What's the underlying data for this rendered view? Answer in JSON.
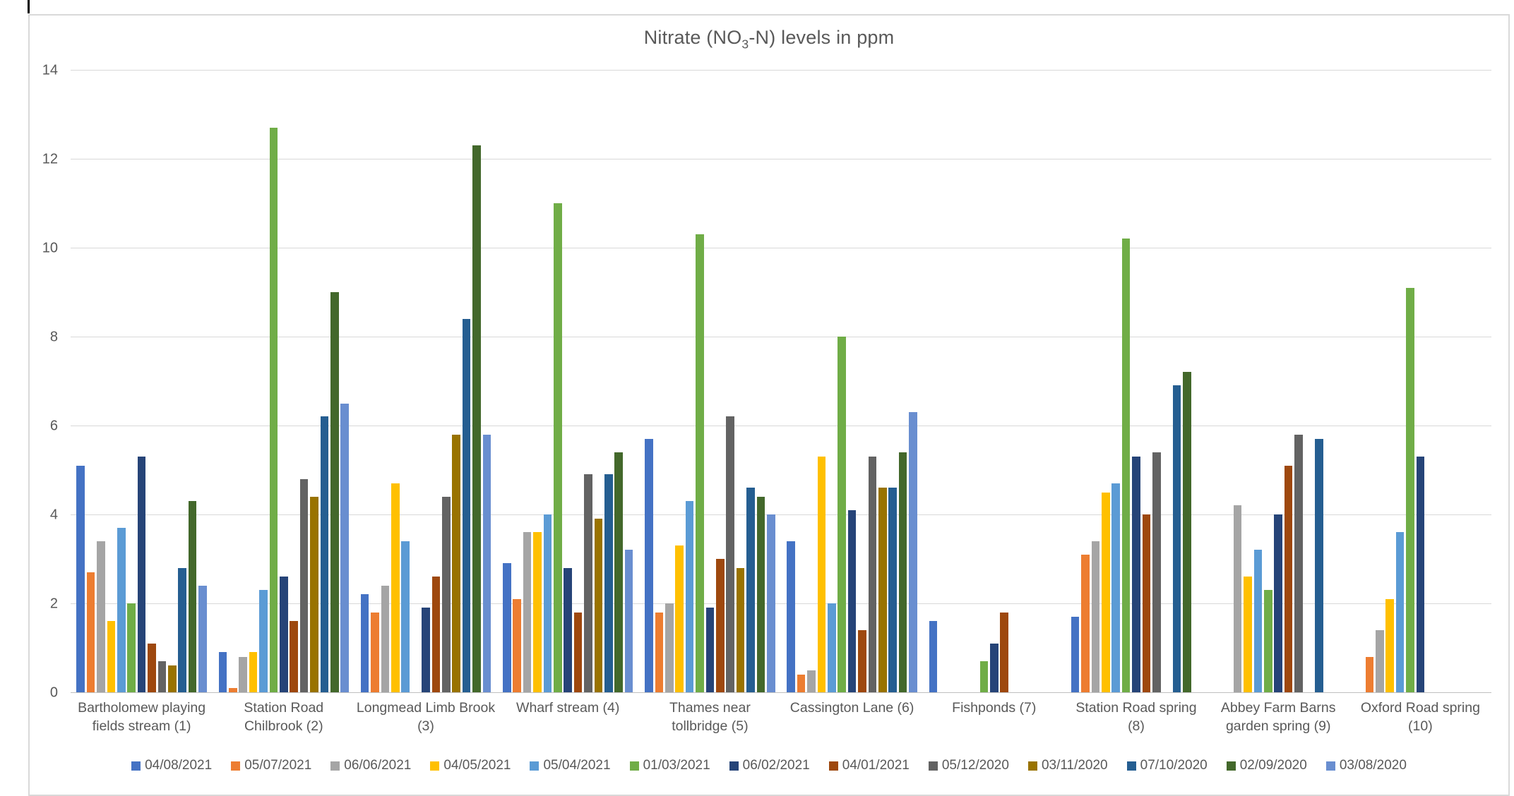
{
  "page": {
    "background": "#ffffff",
    "frame_border_color": "#d9d9d9"
  },
  "chart_data": {
    "type": "bar",
    "title": "Nitrate (NO₃-N) levels in ppm",
    "title_parts": {
      "pre": "Nitrate (NO",
      "sub": "3",
      "post": "-N) levels in ppm"
    },
    "xlabel": "",
    "ylabel": "",
    "ylim": [
      0,
      14
    ],
    "yticks": [
      0,
      2,
      4,
      6,
      8,
      10,
      12,
      14
    ],
    "grid": "horizontal",
    "legend_position": "bottom",
    "text_color": "#595959",
    "grid_color": "#d9d9d9",
    "axis_line_color": "#bfbfbf",
    "categories": [
      "Bartholomew playing fields stream (1)",
      "Station Road Chilbrook (2)",
      "Longmead Limb Brook (3)",
      "Wharf stream (4)",
      "Thames near tollbridge (5)",
      "Cassington Lane (6)",
      "Fishponds (7)",
      "Station Road spring (8)",
      "Abbey Farm Barns garden spring (9)",
      "Oxford Road spring (10)"
    ],
    "series": [
      {
        "name": "04/08/2021",
        "color": "#4472C4",
        "values": [
          5.1,
          0.9,
          2.2,
          2.9,
          5.7,
          3.4,
          1.6,
          1.7,
          0,
          0
        ]
      },
      {
        "name": "05/07/2021",
        "color": "#ED7D31",
        "values": [
          2.7,
          0.1,
          1.8,
          2.1,
          1.8,
          0.4,
          0,
          3.1,
          0,
          0.8
        ]
      },
      {
        "name": "06/06/2021",
        "color": "#A5A5A5",
        "values": [
          3.4,
          0.8,
          2.4,
          3.6,
          2.0,
          0.5,
          0,
          3.4,
          4.2,
          1.4
        ]
      },
      {
        "name": "04/05/2021",
        "color": "#FFC000",
        "values": [
          1.6,
          0.9,
          4.7,
          3.6,
          3.3,
          5.3,
          0,
          4.5,
          2.6,
          2.1
        ]
      },
      {
        "name": "05/04/2021",
        "color": "#5B9BD5",
        "values": [
          3.7,
          2.3,
          3.4,
          4.0,
          4.3,
          2.0,
          0,
          4.7,
          3.2,
          3.6
        ]
      },
      {
        "name": "01/03/2021",
        "color": "#70AD47",
        "values": [
          2.0,
          12.7,
          0,
          11.0,
          10.3,
          8.0,
          0.7,
          10.2,
          2.3,
          9.1
        ]
      },
      {
        "name": "06/02/2021",
        "color": "#264478",
        "values": [
          5.3,
          2.6,
          1.9,
          2.8,
          1.9,
          4.1,
          1.1,
          5.3,
          4.0,
          5.3
        ]
      },
      {
        "name": "04/01/2021",
        "color": "#9E480E",
        "values": [
          1.1,
          1.6,
          2.6,
          1.8,
          3.0,
          1.4,
          1.8,
          4.0,
          5.1,
          0
        ]
      },
      {
        "name": "05/12/2020",
        "color": "#636363",
        "values": [
          0.7,
          4.8,
          4.4,
          4.9,
          6.2,
          5.3,
          0,
          5.4,
          5.8,
          0
        ]
      },
      {
        "name": "03/11/2020",
        "color": "#997300",
        "values": [
          0.6,
          4.4,
          5.8,
          3.9,
          2.8,
          4.6,
          0,
          0,
          0,
          0
        ]
      },
      {
        "name": "07/10/2020",
        "color": "#255E91",
        "values": [
          2.8,
          6.2,
          8.4,
          4.9,
          4.6,
          4.6,
          0,
          6.9,
          5.7,
          0
        ]
      },
      {
        "name": "02/09/2020",
        "color": "#43682B",
        "values": [
          4.3,
          9.0,
          12.3,
          5.4,
          4.4,
          5.4,
          0,
          7.2,
          0,
          0
        ]
      },
      {
        "name": "03/08/2020",
        "color": "#698ED0",
        "values": [
          2.4,
          6.5,
          5.8,
          3.2,
          4.0,
          6.3,
          0,
          0,
          0,
          0
        ]
      }
    ]
  }
}
